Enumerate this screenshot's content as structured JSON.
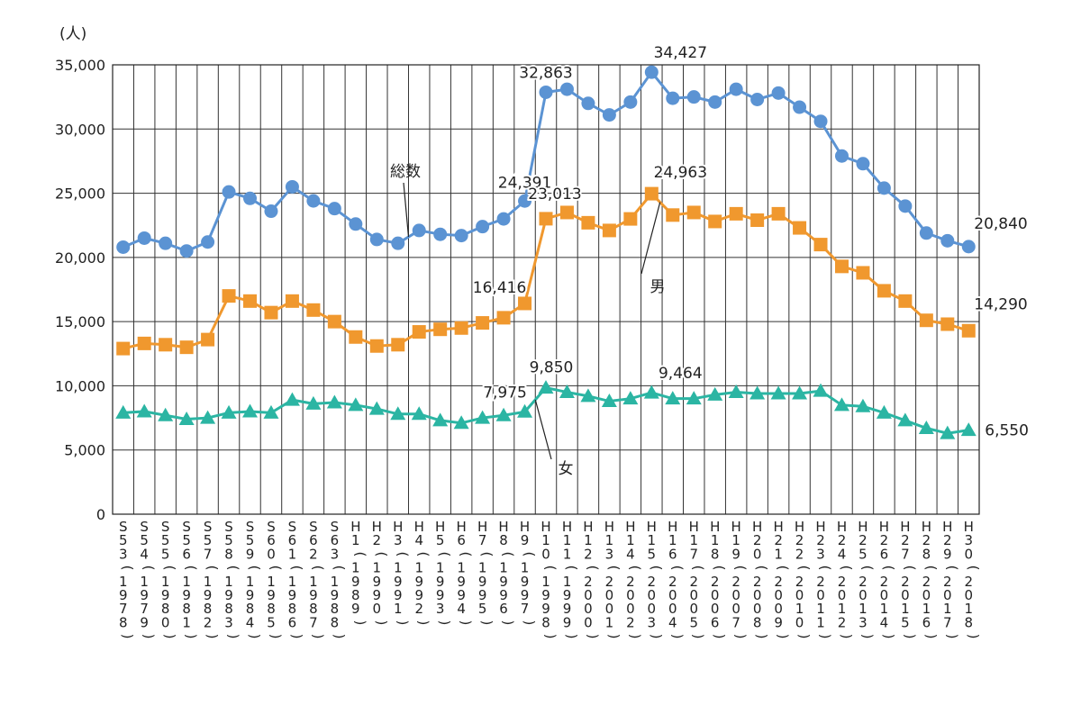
{
  "chart_data": {
    "type": "line",
    "y_unit_label": "(人)",
    "ylim": [
      0,
      35000
    ],
    "yticks": [
      0,
      5000,
      10000,
      15000,
      20000,
      25000,
      30000,
      35000
    ],
    "ytick_labels": [
      "0",
      "5,000",
      "10,000",
      "15,000",
      "20,000",
      "25,000",
      "30,000",
      "35,000"
    ],
    "grid": true,
    "categories": [
      {
        "era": "S53",
        "year": "1978"
      },
      {
        "era": "S54",
        "year": "1979"
      },
      {
        "era": "S55",
        "year": "1980"
      },
      {
        "era": "S56",
        "year": "1981"
      },
      {
        "era": "S57",
        "year": "1982"
      },
      {
        "era": "S58",
        "year": "1983"
      },
      {
        "era": "S59",
        "year": "1984"
      },
      {
        "era": "S60",
        "year": "1985"
      },
      {
        "era": "S61",
        "year": "1986"
      },
      {
        "era": "S62",
        "year": "1987"
      },
      {
        "era": "S63",
        "year": "1988"
      },
      {
        "era": "H1",
        "year": "1989"
      },
      {
        "era": "H2",
        "year": "1990"
      },
      {
        "era": "H3",
        "year": "1991"
      },
      {
        "era": "H4",
        "year": "1992"
      },
      {
        "era": "H5",
        "year": "1993"
      },
      {
        "era": "H6",
        "year": "1994"
      },
      {
        "era": "H7",
        "year": "1995"
      },
      {
        "era": "H8",
        "year": "1996"
      },
      {
        "era": "H9",
        "year": "1997"
      },
      {
        "era": "H10",
        "year": "1998"
      },
      {
        "era": "H11",
        "year": "1999"
      },
      {
        "era": "H12",
        "year": "2000"
      },
      {
        "era": "H13",
        "year": "2001"
      },
      {
        "era": "H14",
        "year": "2002"
      },
      {
        "era": "H15",
        "year": "2003"
      },
      {
        "era": "H16",
        "year": "2004"
      },
      {
        "era": "H17",
        "year": "2005"
      },
      {
        "era": "H18",
        "year": "2006"
      },
      {
        "era": "H19",
        "year": "2007"
      },
      {
        "era": "H20",
        "year": "2008"
      },
      {
        "era": "H21",
        "year": "2009"
      },
      {
        "era": "H22",
        "year": "2010"
      },
      {
        "era": "H23",
        "year": "2011"
      },
      {
        "era": "H24",
        "year": "2012"
      },
      {
        "era": "H25",
        "year": "2013"
      },
      {
        "era": "H26",
        "year": "2014"
      },
      {
        "era": "H27",
        "year": "2015"
      },
      {
        "era": "H28",
        "year": "2016"
      },
      {
        "era": "H29",
        "year": "2017"
      },
      {
        "era": "H30",
        "year": "2018"
      }
    ],
    "series": [
      {
        "name": "総数",
        "color": "#5b93d3",
        "marker": "circle",
        "values": [
          20800,
          21500,
          21100,
          20500,
          21200,
          25100,
          24600,
          23600,
          25500,
          24400,
          23800,
          22600,
          21400,
          21100,
          22100,
          21800,
          21700,
          22400,
          23000,
          24391,
          32863,
          33100,
          32000,
          31100,
          32100,
          34427,
          32400,
          32500,
          32100,
          33100,
          32300,
          32800,
          31700,
          30600,
          27900,
          27300,
          25400,
          24000,
          21900,
          21300,
          20840
        ],
        "labels": [
          {
            "index": 19,
            "text": "24,391"
          },
          {
            "index": 20,
            "text": "32,863"
          },
          {
            "index": 25,
            "text": "34,427"
          },
          {
            "index": 40,
            "text": "20,840"
          }
        ]
      },
      {
        "name": "男",
        "color": "#f0982e",
        "marker": "square",
        "values": [
          12900,
          13300,
          13200,
          13000,
          13600,
          17000,
          16600,
          15700,
          16600,
          15900,
          15000,
          13800,
          13100,
          13200,
          14200,
          14400,
          14500,
          14900,
          15300,
          16416,
          23013,
          23500,
          22700,
          22100,
          23000,
          24963,
          23300,
          23500,
          22800,
          23400,
          22900,
          23400,
          22300,
          21000,
          19300,
          18800,
          17400,
          16600,
          15100,
          14800,
          14290
        ],
        "labels": [
          {
            "index": 19,
            "text": "16,416"
          },
          {
            "index": 20,
            "text": "23,013"
          },
          {
            "index": 25,
            "text": "24,963"
          },
          {
            "index": 40,
            "text": "14,290"
          }
        ]
      },
      {
        "name": "女",
        "color": "#2bb5a3",
        "marker": "triangle",
        "values": [
          7900,
          8000,
          7700,
          7400,
          7500,
          7900,
          8000,
          7900,
          8900,
          8600,
          8700,
          8500,
          8200,
          7800,
          7800,
          7300,
          7100,
          7500,
          7700,
          7975,
          9850,
          9500,
          9200,
          8800,
          9000,
          9464,
          9000,
          9000,
          9300,
          9500,
          9400,
          9400,
          9400,
          9600,
          8500,
          8400,
          7900,
          7300,
          6700,
          6300,
          6550
        ],
        "labels": [
          {
            "index": 19,
            "text": "7,975"
          },
          {
            "index": 20,
            "text": "9,850"
          },
          {
            "index": 25,
            "text": "9,464"
          },
          {
            "index": 40,
            "text": "6,550"
          }
        ]
      }
    ]
  }
}
